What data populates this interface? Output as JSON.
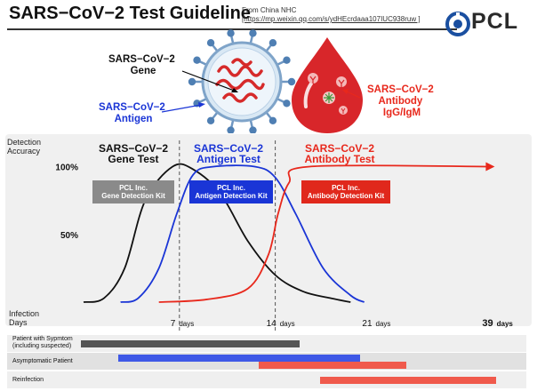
{
  "header": {
    "title": "SARS−CoV−2 Test Guideline",
    "source_line1": "From China NHC",
    "source_line2": "[https://mp.weixin.qq.com/s/ydHEcrdaaa107IUC938ruw ]",
    "logo_text": "PCL"
  },
  "illustrations": {
    "virus_label": [
      "SARS−CoV−2",
      "Gene"
    ],
    "antigen_label": [
      "SARS−CoV−2",
      "Antigen"
    ],
    "antibody_label": [
      "SARS−CoV−2",
      "Antibody",
      "IgG/IgM"
    ]
  },
  "colors": {
    "gene": "#111111",
    "antigen": "#1a35d6",
    "antibody": "#e8281c",
    "gene_kit_bg": "#8a8a8a",
    "antigen_kit_bg": "#1a35d6",
    "antibody_kit_bg": "#e0281c",
    "symptom_bar": "#555555",
    "antigen_bar": "#3e58e6",
    "antibody_bar": "#f05a4c"
  },
  "chart_data": {
    "type": "line",
    "ylabel": "Detection Accuracy",
    "xlabel": "Infection Days",
    "y_ticks": [
      "100%",
      "50%"
    ],
    "x_ticks": [
      {
        "day": 7,
        "label": "7",
        "unit": "days"
      },
      {
        "day": 14,
        "label": "14",
        "unit": "days"
      },
      {
        "day": 21,
        "label": "21",
        "unit": "days"
      },
      {
        "day": 39,
        "label": "39",
        "unit": "days"
      }
    ],
    "reference_days": [
      7,
      14
    ],
    "series": [
      {
        "name": "SARS−CoV−2 Gene Test",
        "title_lines": [
          "SARS−CoV−2",
          "Gene Test"
        ],
        "kit_lines": [
          "PCL Inc.",
          "Gene Detection Kit"
        ],
        "points": [
          [
            0,
            0
          ],
          [
            1.5,
            3
          ],
          [
            3,
            25
          ],
          [
            4.5,
            75
          ],
          [
            6.5,
            100
          ],
          [
            8,
            98
          ],
          [
            10,
            80
          ],
          [
            12,
            45
          ],
          [
            14,
            20
          ],
          [
            16,
            8
          ],
          [
            18,
            3
          ],
          [
            19.5,
            0
          ]
        ]
      },
      {
        "name": "SARS−CoV−2 Antigen Test",
        "title_lines": [
          "SARS−CoV−2",
          "Antigen Test"
        ],
        "kit_lines": [
          "PCL Inc.",
          "Antigen Detection Kit"
        ],
        "points": [
          [
            2.7,
            0
          ],
          [
            4,
            3
          ],
          [
            5.5,
            25
          ],
          [
            6.8,
            65
          ],
          [
            8,
            94
          ],
          [
            9.5,
            100
          ],
          [
            12.5,
            100
          ],
          [
            14,
            92
          ],
          [
            15.5,
            65
          ],
          [
            17.5,
            25
          ],
          [
            19.5,
            5
          ],
          [
            20.5,
            0
          ]
        ]
      },
      {
        "name": "SARS−CoV−2 Antibody Test",
        "title_lines": [
          "SARS−CoV−2",
          "Antibody Test"
        ],
        "kit_lines": [
          "PCL Inc.",
          "Antibody Detection Kit"
        ],
        "points": [
          [
            5.5,
            0
          ],
          [
            9,
            2
          ],
          [
            12,
            10
          ],
          [
            13.5,
            35
          ],
          [
            14.2,
            65
          ],
          [
            15,
            88
          ],
          [
            16.5,
            100
          ],
          [
            39,
            100
          ]
        ],
        "arrow": true
      }
    ]
  },
  "timeline": [
    {
      "label_lines": [
        "Patient with Sypmtom",
        "(including suspected)"
      ],
      "bars": [
        {
          "start_day": -0.2,
          "end_day": 15.8,
          "color_key": "symptom_bar"
        }
      ]
    },
    {
      "label_lines": [
        "Asymptomatic Patient"
      ],
      "bars": [
        {
          "start_day": 2.5,
          "end_day": 20.2,
          "color_key": "antigen_bar"
        },
        {
          "start_day": 12.8,
          "end_day": 26.3,
          "color_key": "antibody_bar"
        }
      ]
    },
    {
      "label_lines": [
        "Reinfection"
      ],
      "bars": [
        {
          "start_day": 17.3,
          "end_day": 39.8,
          "color_key": "antibody_bar"
        }
      ]
    }
  ]
}
